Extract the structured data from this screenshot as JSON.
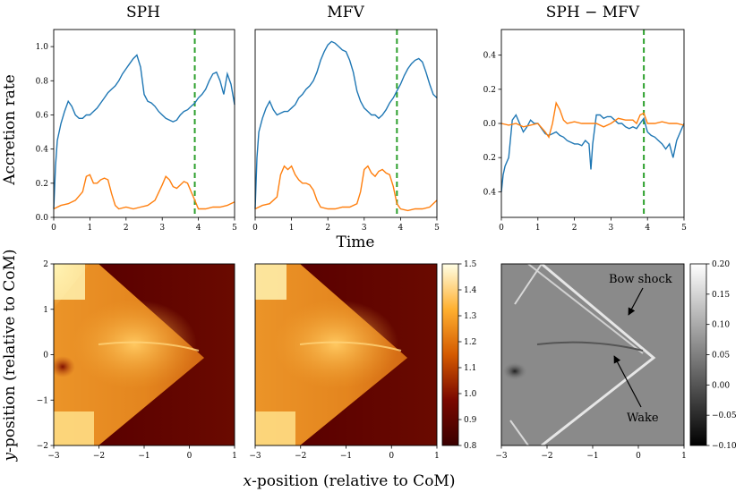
{
  "titles": [
    "SPH",
    "MFV",
    "SPH − MFV"
  ],
  "ylabel_top": "Accretion rate",
  "xlabel_top": "Time",
  "xlabel_bottom_italic": "x",
  "xlabel_bottom_rest": "-position (relative to CoM)",
  "ylabel_bottom_italic": "y",
  "ylabel_bottom_rest": "-position (relative to CoM)",
  "annotations": {
    "bow_shock": "Bow shock",
    "wake": "Wake"
  },
  "colors": {
    "series_1": "#1f77b4",
    "series_2": "#ff7f0e",
    "marker_line": "#2ca02c"
  },
  "chart_data": [
    {
      "type": "line",
      "title": "SPH",
      "ylabel": "Accretion rate",
      "xlabel": "",
      "xlim": [
        0,
        5
      ],
      "ylim": [
        0,
        1.1
      ],
      "xticks": [
        "0",
        "1",
        "2",
        "3",
        "4",
        "5"
      ],
      "yticks": [
        "0.0",
        "0.2",
        "0.4",
        "0.6",
        "0.8",
        "1.0"
      ],
      "vline_x": 3.9,
      "series": [
        {
          "color": "#1f77b4",
          "x": [
            0,
            0.05,
            0.1,
            0.2,
            0.3,
            0.4,
            0.5,
            0.6,
            0.7,
            0.8,
            0.9,
            1.0,
            1.1,
            1.2,
            1.3,
            1.4,
            1.5,
            1.6,
            1.7,
            1.8,
            1.9,
            2.0,
            2.1,
            2.2,
            2.3,
            2.4,
            2.5,
            2.6,
            2.7,
            2.8,
            2.9,
            3.0,
            3.1,
            3.2,
            3.3,
            3.4,
            3.5,
            3.6,
            3.7,
            3.8,
            3.9,
            4.0,
            4.1,
            4.2,
            4.3,
            4.4,
            4.5,
            4.6,
            4.7,
            4.8,
            4.9,
            5.0
          ],
          "y": [
            0.05,
            0.3,
            0.45,
            0.55,
            0.62,
            0.68,
            0.65,
            0.6,
            0.58,
            0.58,
            0.6,
            0.6,
            0.62,
            0.64,
            0.67,
            0.7,
            0.73,
            0.75,
            0.77,
            0.8,
            0.84,
            0.87,
            0.9,
            0.93,
            0.95,
            0.88,
            0.72,
            0.68,
            0.67,
            0.65,
            0.62,
            0.6,
            0.58,
            0.57,
            0.56,
            0.57,
            0.6,
            0.62,
            0.63,
            0.65,
            0.67,
            0.7,
            0.72,
            0.75,
            0.8,
            0.84,
            0.85,
            0.8,
            0.72,
            0.84,
            0.78,
            0.66
          ]
        },
        {
          "color": "#ff7f0e",
          "x": [
            0,
            0.2,
            0.4,
            0.6,
            0.8,
            0.9,
            1.0,
            1.1,
            1.2,
            1.3,
            1.4,
            1.5,
            1.6,
            1.7,
            1.8,
            2.0,
            2.2,
            2.4,
            2.6,
            2.8,
            3.0,
            3.1,
            3.2,
            3.3,
            3.4,
            3.5,
            3.6,
            3.7,
            3.8,
            3.9,
            4.0,
            4.2,
            4.4,
            4.6,
            4.8,
            5.0
          ],
          "y": [
            0.05,
            0.07,
            0.08,
            0.1,
            0.15,
            0.24,
            0.25,
            0.2,
            0.2,
            0.22,
            0.23,
            0.22,
            0.14,
            0.07,
            0.05,
            0.06,
            0.05,
            0.06,
            0.07,
            0.1,
            0.19,
            0.24,
            0.22,
            0.18,
            0.17,
            0.19,
            0.21,
            0.2,
            0.15,
            0.1,
            0.05,
            0.05,
            0.06,
            0.06,
            0.07,
            0.09
          ]
        }
      ]
    },
    {
      "type": "line",
      "title": "MFV",
      "xlim": [
        0,
        5
      ],
      "ylim": [
        0,
        1.1
      ],
      "xticks": [
        "0",
        "1",
        "2",
        "3",
        "4",
        "5"
      ],
      "yticks": [],
      "vline_x": 3.9,
      "series": [
        {
          "color": "#1f77b4",
          "x": [
            0,
            0.05,
            0.1,
            0.2,
            0.3,
            0.4,
            0.5,
            0.6,
            0.7,
            0.8,
            0.9,
            1.0,
            1.1,
            1.2,
            1.3,
            1.4,
            1.5,
            1.6,
            1.7,
            1.8,
            1.9,
            2.0,
            2.1,
            2.2,
            2.3,
            2.4,
            2.5,
            2.6,
            2.7,
            2.8,
            2.9,
            3.0,
            3.1,
            3.2,
            3.3,
            3.4,
            3.5,
            3.6,
            3.7,
            3.8,
            3.9,
            4.0,
            4.1,
            4.2,
            4.3,
            4.4,
            4.5,
            4.6,
            4.7,
            4.8,
            4.9,
            5.0
          ],
          "y": [
            0.05,
            0.35,
            0.5,
            0.58,
            0.64,
            0.68,
            0.63,
            0.6,
            0.61,
            0.62,
            0.62,
            0.64,
            0.66,
            0.7,
            0.72,
            0.75,
            0.77,
            0.8,
            0.85,
            0.92,
            0.97,
            1.01,
            1.03,
            1.02,
            1.0,
            0.98,
            0.97,
            0.92,
            0.85,
            0.74,
            0.68,
            0.64,
            0.62,
            0.6,
            0.6,
            0.58,
            0.6,
            0.63,
            0.67,
            0.7,
            0.74,
            0.78,
            0.83,
            0.87,
            0.9,
            0.92,
            0.93,
            0.91,
            0.85,
            0.78,
            0.72,
            0.7
          ]
        },
        {
          "color": "#ff7f0e",
          "x": [
            0,
            0.2,
            0.4,
            0.6,
            0.7,
            0.8,
            0.9,
            1.0,
            1.1,
            1.2,
            1.3,
            1.4,
            1.5,
            1.6,
            1.7,
            1.8,
            2.0,
            2.2,
            2.4,
            2.6,
            2.8,
            2.9,
            3.0,
            3.1,
            3.2,
            3.3,
            3.4,
            3.5,
            3.6,
            3.7,
            3.8,
            3.9,
            4.0,
            4.2,
            4.4,
            4.6,
            4.8,
            5.0
          ],
          "y": [
            0.05,
            0.07,
            0.08,
            0.12,
            0.25,
            0.3,
            0.28,
            0.3,
            0.25,
            0.22,
            0.2,
            0.2,
            0.19,
            0.16,
            0.1,
            0.06,
            0.05,
            0.05,
            0.06,
            0.06,
            0.08,
            0.15,
            0.28,
            0.3,
            0.26,
            0.24,
            0.27,
            0.28,
            0.26,
            0.25,
            0.18,
            0.08,
            0.05,
            0.04,
            0.05,
            0.05,
            0.06,
            0.1
          ]
        }
      ]
    },
    {
      "type": "line",
      "title": "SPH − MFV",
      "xlim": [
        0,
        5
      ],
      "ylim": [
        0.55,
        -0.55
      ],
      "xticks": [
        "0",
        "1",
        "2",
        "3",
        "4",
        "5"
      ],
      "yticks": [
        "0.4",
        "0.2",
        "0.0",
        "0.2",
        "0.4"
      ],
      "vline_x": 3.9,
      "series": [
        {
          "color": "#1f77b4",
          "x": [
            0,
            0.05,
            0.1,
            0.2,
            0.3,
            0.4,
            0.5,
            0.6,
            0.7,
            0.8,
            0.9,
            1.0,
            1.1,
            1.2,
            1.3,
            1.4,
            1.5,
            1.6,
            1.7,
            1.8,
            1.9,
            2.0,
            2.1,
            2.2,
            2.3,
            2.4,
            2.45,
            2.5,
            2.6,
            2.7,
            2.8,
            2.9,
            3.0,
            3.1,
            3.2,
            3.3,
            3.4,
            3.5,
            3.6,
            3.7,
            3.8,
            3.9,
            4.0,
            4.1,
            4.2,
            4.3,
            4.4,
            4.5,
            4.6,
            4.7,
            4.8,
            4.9,
            5.0
          ],
          "y": [
            0.4,
            0.3,
            0.25,
            0.2,
            -0.02,
            -0.05,
            0.0,
            0.05,
            0.02,
            -0.02,
            0.0,
            0.0,
            0.03,
            0.06,
            0.07,
            0.06,
            0.05,
            0.07,
            0.08,
            0.1,
            0.11,
            0.12,
            0.12,
            0.13,
            0.1,
            0.12,
            0.27,
            0.12,
            -0.05,
            -0.05,
            -0.03,
            -0.04,
            -0.04,
            -0.02,
            0.0,
            0.0,
            0.02,
            0.03,
            0.02,
            0.03,
            0.0,
            -0.03,
            0.05,
            0.07,
            0.08,
            0.1,
            0.12,
            0.15,
            0.12,
            0.2,
            0.1,
            0.05,
            0.0
          ]
        },
        {
          "color": "#ff7f0e",
          "x": [
            0,
            0.2,
            0.4,
            0.6,
            0.8,
            1.0,
            1.2,
            1.3,
            1.4,
            1.5,
            1.6,
            1.7,
            1.8,
            2.0,
            2.2,
            2.4,
            2.6,
            2.8,
            3.0,
            3.2,
            3.4,
            3.6,
            3.7,
            3.8,
            3.9,
            4.0,
            4.2,
            4.4,
            4.6,
            4.8,
            5.0
          ],
          "y": [
            0.0,
            0.01,
            0.0,
            0.02,
            0.01,
            0.0,
            0.05,
            0.08,
            0.0,
            -0.12,
            -0.08,
            -0.02,
            0.0,
            -0.01,
            0.0,
            0.0,
            0.0,
            0.02,
            0.0,
            -0.03,
            -0.02,
            -0.02,
            0.0,
            -0.05,
            -0.06,
            0.0,
            0.0,
            -0.01,
            0.0,
            0.0,
            0.01
          ]
        }
      ]
    },
    {
      "type": "heatmap",
      "title": "",
      "xlim": [
        -3,
        1
      ],
      "ylim": [
        -2,
        2
      ],
      "xticks": [
        "−3",
        "−2",
        "−1",
        "0",
        "1"
      ],
      "yticks": [
        "−2",
        "−1",
        "0",
        "1",
        "2"
      ],
      "colormap": "afmhot",
      "colorbar_range": [
        0.8,
        1.5
      ]
    },
    {
      "type": "heatmap",
      "title": "",
      "xlim": [
        -3,
        1
      ],
      "ylim": [
        -2,
        2
      ],
      "xticks": [
        "−3",
        "−2",
        "−1",
        "0",
        "1"
      ],
      "yticks": [],
      "colormap": "afmhot",
      "colorbar_ticks": [
        "0.8",
        "0.9",
        "1.0",
        "1.1",
        "1.2",
        "1.3",
        "1.4",
        "1.5"
      ],
      "colorbar_range": [
        0.8,
        1.5
      ]
    },
    {
      "type": "heatmap",
      "title": "",
      "xlim": [
        -3,
        1
      ],
      "ylim": [
        -2,
        2
      ],
      "xticks": [
        "−3",
        "−2",
        "−1",
        "0",
        "1"
      ],
      "yticks": [],
      "colormap": "gray",
      "colorbar_ticks": [
        "−0.10",
        "−0.05",
        "0.00",
        "0.05",
        "0.10",
        "0.15",
        "0.20"
      ],
      "colorbar_range": [
        -0.1,
        0.2
      ]
    }
  ]
}
